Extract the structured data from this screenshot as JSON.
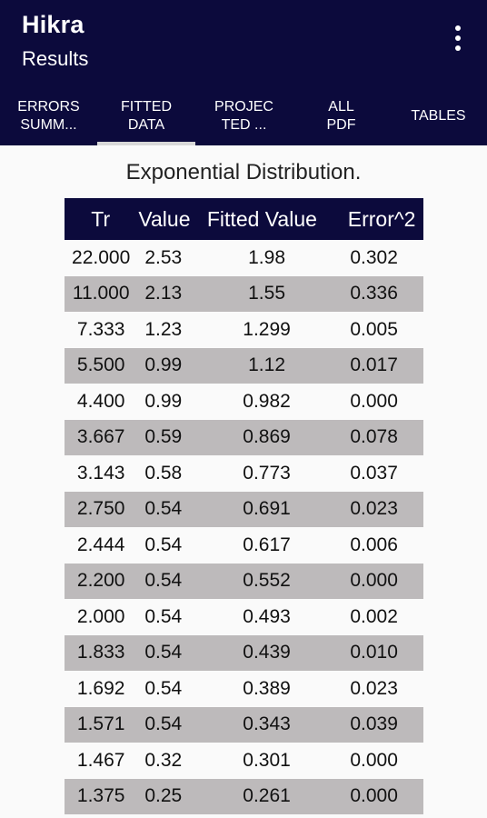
{
  "appbar": {
    "title": "Hikra",
    "subtitle": "Results",
    "overflow_icon": "more-vert-icon"
  },
  "tabs": [
    {
      "label": "ERRORS\nSUMM...",
      "active": false
    },
    {
      "label": "FITTED\nDATA",
      "active": true
    },
    {
      "label": "PROJEC\nTED ...",
      "active": false
    },
    {
      "label": "ALL\nPDF",
      "active": false
    },
    {
      "label": "TABLES",
      "active": false
    }
  ],
  "table": {
    "title": "Exponential Distribution.",
    "headers": [
      "Tr",
      "Value",
      "Fitted Value",
      "Error^2"
    ],
    "rows": [
      [
        "22.000",
        "2.53",
        "1.98",
        "0.302"
      ],
      [
        "11.000",
        "2.13",
        "1.55",
        "0.336"
      ],
      [
        "7.333",
        "1.23",
        "1.299",
        "0.005"
      ],
      [
        "5.500",
        "0.99",
        "1.12",
        "0.017"
      ],
      [
        "4.400",
        "0.99",
        "0.982",
        "0.000"
      ],
      [
        "3.667",
        "0.59",
        "0.869",
        "0.078"
      ],
      [
        "3.143",
        "0.58",
        "0.773",
        "0.037"
      ],
      [
        "2.750",
        "0.54",
        "0.691",
        "0.023"
      ],
      [
        "2.444",
        "0.54",
        "0.617",
        "0.006"
      ],
      [
        "2.200",
        "0.54",
        "0.552",
        "0.000"
      ],
      [
        "2.000",
        "0.54",
        "0.493",
        "0.002"
      ],
      [
        "1.833",
        "0.54",
        "0.439",
        "0.010"
      ],
      [
        "1.692",
        "0.54",
        "0.389",
        "0.023"
      ],
      [
        "1.571",
        "0.54",
        "0.343",
        "0.039"
      ],
      [
        "1.467",
        "0.32",
        "0.301",
        "0.000"
      ],
      [
        "1.375",
        "0.25",
        "0.261",
        "0.000"
      ]
    ]
  },
  "colors": {
    "appbar": "#0c0a3c",
    "alt_row": "#bdbabb",
    "tab_indicator": "#d8d8d8"
  }
}
